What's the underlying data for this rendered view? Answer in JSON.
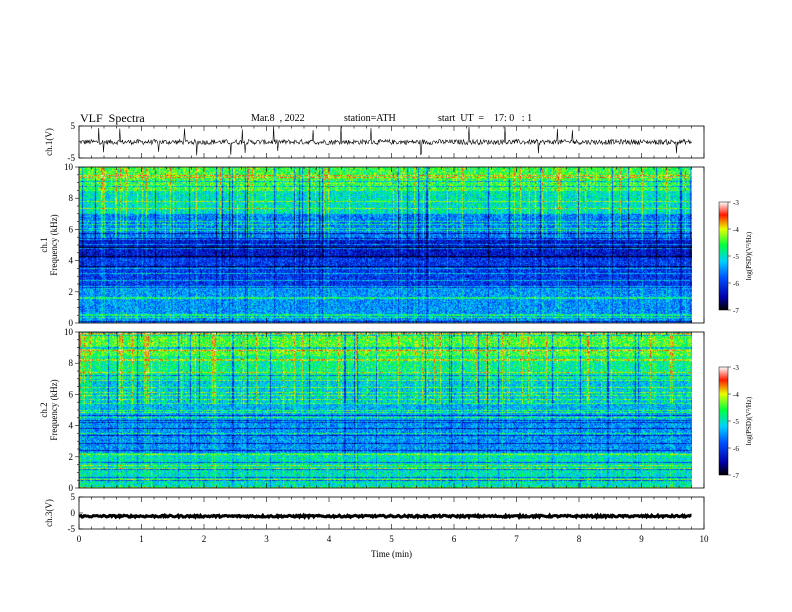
{
  "header": {
    "title": "VLF  Spectra",
    "date": "Mar.8  , 2022",
    "station": "station=ATH",
    "start": "start  UT  =    17: 0   : 1"
  },
  "chart_data": [
    {
      "type": "line",
      "panel": "ch1-waveform",
      "ylabel": "ch.1(V)",
      "ylim": [
        -5,
        5
      ],
      "yticks": [
        "5",
        "-5"
      ],
      "baseline": 0,
      "xlim": [
        0,
        10
      ]
    },
    {
      "type": "heatmap",
      "panel": "ch1-spectrogram",
      "ylabel_channel": "ch.1",
      "ylabel": "Frequency  (kHz)",
      "ylim": [
        0,
        10
      ],
      "yticks": [
        "0",
        "2",
        "4",
        "6",
        "8",
        "10"
      ],
      "xlim": [
        0,
        9.8
      ],
      "colorbar": {
        "label": "log(PSD)(V²/Hz)",
        "range": [
          -7,
          -3
        ],
        "ticks": [
          "-3",
          "-4",
          "-5",
          "-6",
          "-7"
        ]
      }
    },
    {
      "type": "heatmap",
      "panel": "ch2-spectrogram",
      "ylabel_channel": "ch.2",
      "ylabel": "Frequency  (kHz)",
      "ylim": [
        0,
        10
      ],
      "yticks": [
        "0",
        "2",
        "4",
        "6",
        "8",
        "10"
      ],
      "xlim": [
        0,
        9.8
      ],
      "colorbar": {
        "label": "log(PSD)(V²/Hz)",
        "range": [
          -7,
          -3
        ],
        "ticks": [
          "-3",
          "-4",
          "-5",
          "-6",
          "-7"
        ]
      }
    },
    {
      "type": "line",
      "panel": "ch3-waveform",
      "ylabel": "ch.3(V)",
      "ylim": [
        -5,
        5
      ],
      "yticks": [
        "5",
        "0",
        "-5"
      ],
      "baseline": -1,
      "xlim": [
        0,
        10
      ]
    }
  ],
  "x_axis": {
    "label": "Time  (min)",
    "range": [
      0,
      10
    ],
    "ticks": [
      "0",
      "1",
      "2",
      "3",
      "4",
      "5",
      "6",
      "7",
      "8",
      "9",
      "10"
    ]
  }
}
